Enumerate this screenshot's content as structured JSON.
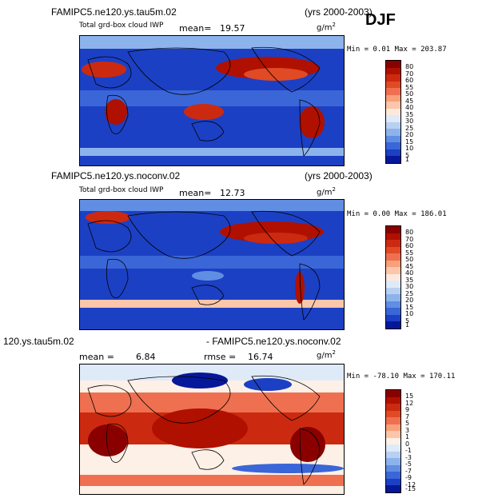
{
  "season": "DJF",
  "panels": [
    {
      "case_label": "FAMIPC5.ne120.ys.tau5m.02",
      "years": "(yrs 2000-2003)",
      "variable": "Total grd-box cloud IWP",
      "mean_label": "mean=",
      "mean_value": "19.57",
      "units_base": "g/m",
      "units_exp": "2",
      "min_max": "Min =   0.01 Max = 203.87",
      "colorbar_labels": [
        "80",
        "70",
        "60",
        "55",
        "50",
        "45",
        "40",
        "35",
        "30",
        "25",
        "20",
        "15",
        "10",
        "5",
        "1"
      ]
    },
    {
      "case_label": "FAMIPC5.ne120.ys.noconv.02",
      "years": "(yrs 2000-2003)",
      "variable": "Total grd-box cloud IWP",
      "mean_label": "mean=",
      "mean_value": "12.73",
      "units_base": "g/m",
      "units_exp": "2",
      "min_max": "Min =   0.00 Max = 186.01",
      "colorbar_labels": [
        "80",
        "70",
        "60",
        "55",
        "50",
        "45",
        "40",
        "35",
        "30",
        "25",
        "20",
        "15",
        "10",
        "5",
        "1"
      ]
    },
    {
      "case_label_left": "120.ys.tau5m.02",
      "case_label_right": "- FAMIPC5.ne120.ys.noconv.02",
      "mean_label": "mean =",
      "mean_value": "6.84",
      "rmse_label": "rmse =",
      "rmse_value": "16.74",
      "units_base": "g/m",
      "units_exp": "2",
      "min_max": "Min = -78.10 Max = 170.11",
      "colorbar_labels": [
        "15",
        "12",
        "9",
        "7",
        "5",
        "3",
        "1",
        "0",
        "-1",
        "-3",
        "-5",
        "-7",
        "-9",
        "-12",
        "-15"
      ]
    }
  ],
  "colors": {
    "seq_scale": [
      "#8a0000",
      "#b01000",
      "#cc2a10",
      "#e04a25",
      "#ee7050",
      "#f7a07a",
      "#fbc6aa",
      "#fde9dc",
      "#dfeaf8",
      "#b8d0f2",
      "#8db3ec",
      "#5f8ee3",
      "#3a66d8",
      "#1c40c4",
      "#06189a"
    ],
    "div_scale": [
      "#8a0000",
      "#b01000",
      "#cc2a10",
      "#e04a25",
      "#ee7050",
      "#f7a07a",
      "#fbc6aa",
      "#fdf0e6",
      "#dfeaf8",
      "#b8d0f2",
      "#8db3ec",
      "#5f8ee3",
      "#3a66d8",
      "#1c40c4",
      "#06189a"
    ]
  }
}
